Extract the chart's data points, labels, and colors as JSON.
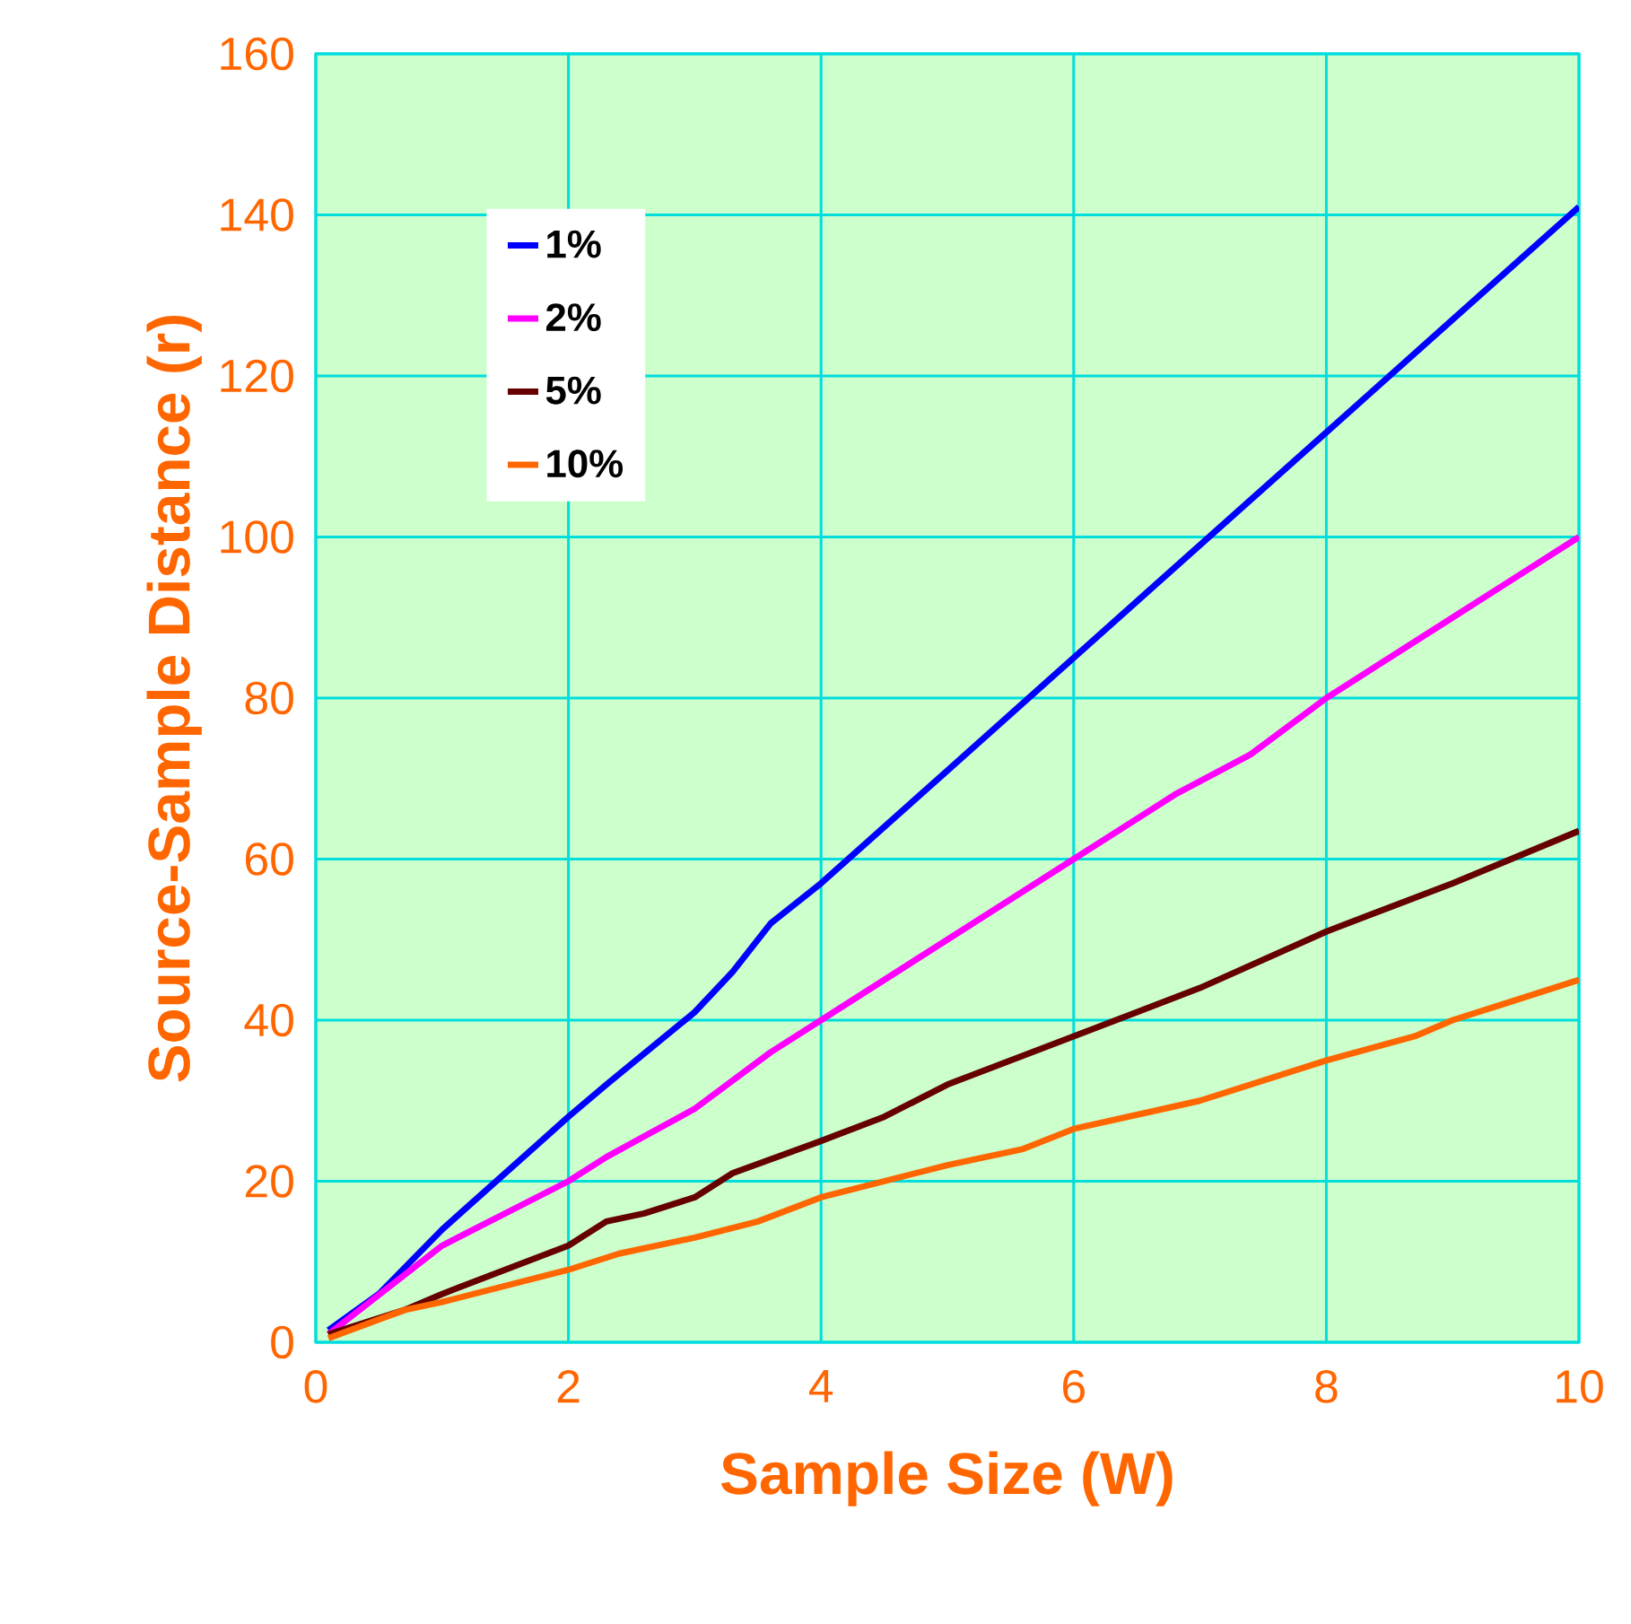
{
  "chart_data": {
    "type": "line",
    "xlabel": "Sample Size (W)",
    "ylabel": "Source-Sample Distance (r)",
    "xlim": [
      0,
      10
    ],
    "ylim": [
      0,
      160
    ],
    "xticks": [
      0,
      2,
      4,
      6,
      8,
      10
    ],
    "yticks": [
      0,
      20,
      40,
      60,
      80,
      100,
      120,
      140,
      160
    ],
    "grid": true,
    "legend": "top left",
    "marker": "none",
    "line_style": "solid",
    "series": [
      {
        "name": "1%",
        "color": "#0000ff",
        "x": [
          0.1,
          0.5,
          1,
          2,
          2.3,
          3,
          3.3,
          3.6,
          4,
          5,
          6,
          7,
          8,
          9,
          10
        ],
        "values": [
          1.5,
          6,
          14,
          28,
          32,
          41,
          46,
          52,
          57,
          71,
          85,
          99,
          113,
          127,
          141
        ]
      },
      {
        "name": "2%",
        "color": "#ff00ff",
        "x": [
          0.1,
          1,
          2,
          2.3,
          3,
          3.6,
          4,
          5,
          6,
          6.8,
          7.4,
          8,
          9,
          9.4,
          10
        ],
        "values": [
          1,
          12,
          20,
          23,
          29,
          36,
          40,
          50,
          60,
          68,
          73,
          80,
          90,
          94,
          100
        ]
      },
      {
        "name": "5%",
        "color": "#660000",
        "x": [
          0.1,
          0.7,
          1,
          2,
          2.3,
          2.6,
          3,
          3.3,
          4,
          4.5,
          5,
          6,
          7,
          8,
          9,
          10
        ],
        "values": [
          1,
          4,
          6,
          12,
          15,
          16,
          18,
          21,
          25,
          28,
          32,
          38,
          44,
          51,
          57,
          63.5
        ]
      },
      {
        "name": "10%",
        "color": "#ff6600",
        "x": [
          0.1,
          0.7,
          1,
          2,
          2.4,
          3,
          3.5,
          4,
          5,
          5.6,
          6,
          7,
          8,
          8.7,
          9,
          9.4,
          10
        ],
        "values": [
          0.5,
          4,
          5,
          9,
          11,
          13,
          15,
          18,
          22,
          24,
          26.5,
          30,
          35,
          38,
          40,
          42,
          45
        ]
      }
    ]
  }
}
